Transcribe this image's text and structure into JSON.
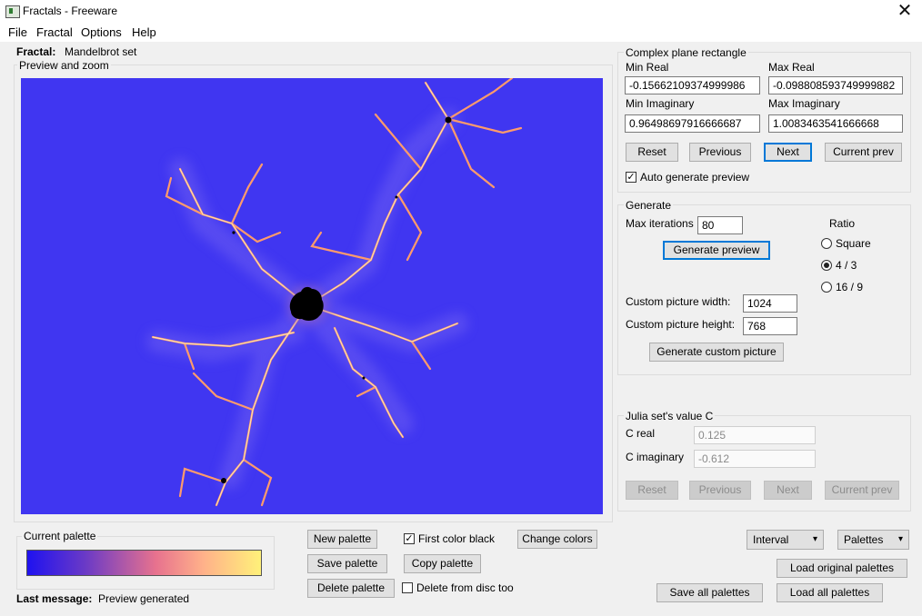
{
  "window": {
    "title": "Fractals - Freeware",
    "close_glyph": "✕"
  },
  "menu": [
    "File",
    "Fractal",
    "Options",
    "Help"
  ],
  "fractal_label": "Fractal:",
  "fractal_value": "Mandelbrot set",
  "preview": {
    "title": "Preview and zoom"
  },
  "complex_plane": {
    "title": "Complex plane rectangle",
    "min_real_label": "Min Real",
    "min_real": "-0.15662109374999986",
    "max_real_label": "Max Real",
    "max_real": "-0.098808593749999882",
    "min_imag_label": "Min Imaginary",
    "min_imag": "0.96498697916666687",
    "max_imag_label": "Max Imaginary",
    "max_imag": "1.0083463541666668",
    "buttons": {
      "reset": "Reset",
      "previous": "Previous",
      "next": "Next",
      "current": "Current prev"
    },
    "auto_preview": "Auto generate preview"
  },
  "generate": {
    "title": "Generate",
    "max_iter_label": "Max iterations",
    "max_iter": "80",
    "preview_button": "Generate preview",
    "ratio_label": "Ratio",
    "ratio_options": [
      "Square",
      "4 / 3",
      "16 / 9"
    ],
    "width_label": "Custom picture width:",
    "width": "1024",
    "height_label": "Custom picture height:",
    "height": "768",
    "custom_button": "Generate custom picture"
  },
  "julia": {
    "title": "Julia set's value C",
    "c_real_label": "C real",
    "c_real": "0.125",
    "c_imag_label": "C imaginary",
    "c_imag": "-0.612",
    "buttons": {
      "reset": "Reset",
      "previous": "Previous",
      "next": "Next",
      "current": "Current prev"
    }
  },
  "palette": {
    "title": "Current palette",
    "new": "New palette",
    "save": "Save palette",
    "delete": "Delete palette",
    "first_black": "First color black",
    "copy": "Copy palette",
    "delete_disc": "Delete from disc too",
    "change_colors": "Change colors",
    "interval": "Interval",
    "palettes": "Palettes",
    "load_original": "Load original palettes",
    "save_all": "Save all palettes",
    "load_all": "Load all palettes"
  },
  "status": {
    "label": "Last message:",
    "value": "Preview generated"
  },
  "colors": {
    "fractal_bg": "#3b32f2",
    "gradient_start": "#1f12f0",
    "gradient_end": "#fff17a",
    "focus": "#0078d7"
  }
}
